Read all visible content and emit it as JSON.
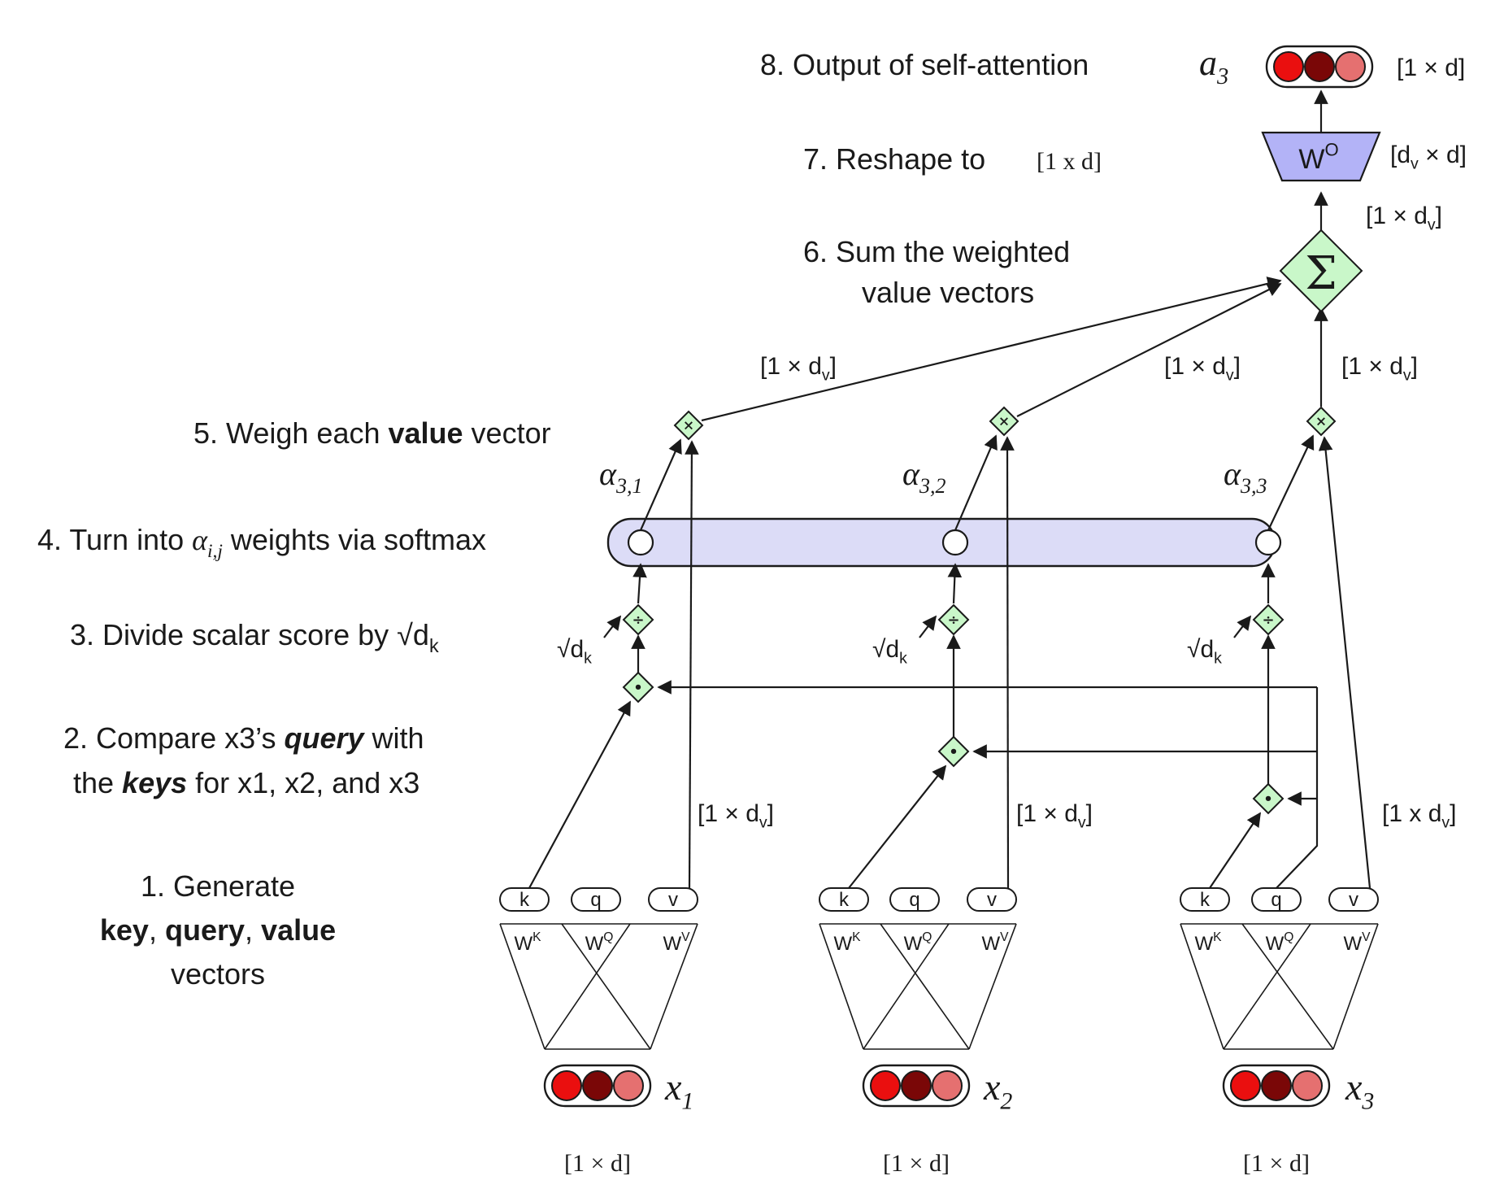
{
  "steps": {
    "s8": "8. Output of self-attention",
    "s7": "7. Reshape to",
    "s7_dim": "[1 x d]",
    "s6_line1": "6. Sum the weighted",
    "s6_line2": "value vectors",
    "s5_pre": "5. Weigh each ",
    "s5_bold": "value",
    "s5_post": " vector",
    "s4_pre": "4. Turn into ",
    "s4_post": " weights via softmax",
    "s3": "3. Divide scalar score by",
    "s2_line1_pre": "2. Compare x3’s ",
    "s2_line1_bold": "query",
    "s2_line1_post": " with",
    "s2_line2_pre": "the ",
    "s2_line2_bold": "keys",
    "s2_line2_post": " for x1, x2, and x3",
    "s1_line1": "1. Generate",
    "s1_line2_a": "key",
    "s1_line2_b": ", ",
    "s1_line2_c": "query",
    "s1_line2_d": ", ",
    "s1_line2_e": "value",
    "s1_line3": "vectors"
  },
  "output": {
    "label": "a3",
    "dim": "[1 × d]"
  },
  "wo": {
    "label": "W",
    "sup": "O",
    "dim": "[dv × d]"
  },
  "sum": {
    "dim_out": "[1 × dv]",
    "symbol": "Σ"
  },
  "dims": {
    "value_in": "[1 × dv]",
    "value_in_3": "[1 x dv]",
    "x": "[1 × d]",
    "weighted": "[1 × dv]"
  },
  "alphas": [
    "α3,1",
    "α3,2",
    "α3,3"
  ],
  "alpha_ij": "αi,j",
  "sqrt_dk": "√dk",
  "inputs": [
    {
      "label": "x1",
      "k": "k",
      "q": "q",
      "v": "v",
      "wk": "WK",
      "wq": "WQ",
      "wv": "WV"
    },
    {
      "label": "x2",
      "k": "k",
      "q": "q",
      "v": "v",
      "wk": "WK",
      "wq": "WQ",
      "wv": "WV"
    },
    {
      "label": "x3",
      "k": "k",
      "q": "q",
      "v": "v",
      "wk": "WK",
      "wq": "WQ",
      "wv": "WV"
    }
  ],
  "ops": {
    "times": "×",
    "divide": "÷",
    "dot": "•"
  },
  "colors": {
    "vec1": "#ea0f0f",
    "vec2": "#7a0707",
    "vec3": "#e57070",
    "op_fill": "#c9f7c9",
    "wo_fill": "#b3b3f7",
    "softmax_fill": "#dcdcf7"
  }
}
